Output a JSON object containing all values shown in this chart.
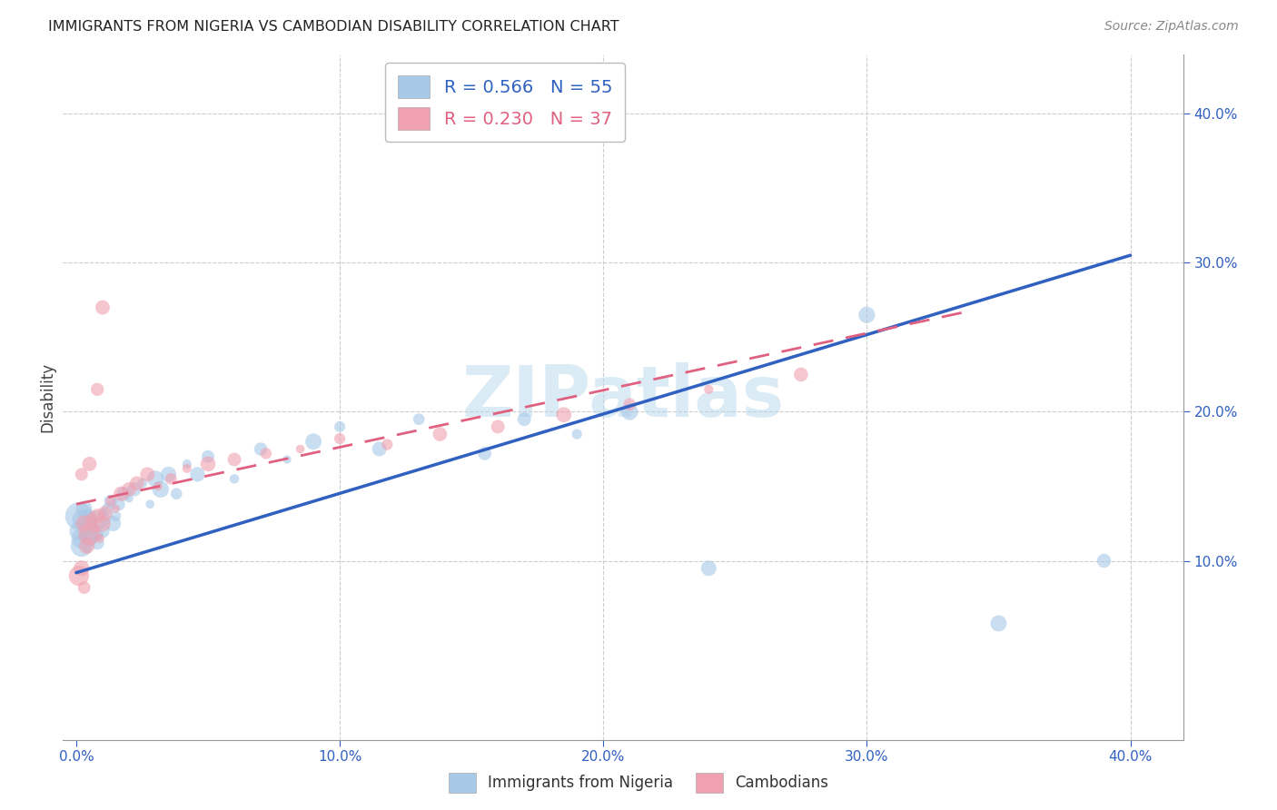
{
  "title": "IMMIGRANTS FROM NIGERIA VS CAMBODIAN DISABILITY CORRELATION CHART",
  "source": "Source: ZipAtlas.com",
  "ylabel": "Disability",
  "xlim": [
    -0.005,
    0.42
  ],
  "ylim": [
    -0.02,
    0.44
  ],
  "xticks": [
    0.0,
    0.1,
    0.2,
    0.3,
    0.4
  ],
  "yticks_right": [
    0.1,
    0.2,
    0.3,
    0.4
  ],
  "ytick_labels_right": [
    "10.0%",
    "20.0%",
    "30.0%",
    "40.0%"
  ],
  "xtick_labels": [
    "0.0%",
    "10.0%",
    "20.0%",
    "30.0%",
    "40.0%"
  ],
  "blue_R": 0.566,
  "blue_N": 55,
  "pink_R": 0.23,
  "pink_N": 37,
  "blue_color": "#a8c8e8",
  "pink_color": "#f0a0b0",
  "blue_line_color": "#3060c0",
  "pink_line_color": "#e06080",
  "watermark": "ZIPatlas",
  "blue_line_x0": 0.0,
  "blue_line_y0": 0.092,
  "blue_line_x1": 0.4,
  "blue_line_y1": 0.305,
  "pink_line_x0": 0.0,
  "pink_line_y0": 0.138,
  "pink_line_x1": 0.34,
  "pink_line_y1": 0.268,
  "blue_scatter_x": [
    0.001,
    0.001,
    0.002,
    0.002,
    0.002,
    0.003,
    0.003,
    0.003,
    0.004,
    0.004,
    0.004,
    0.005,
    0.005,
    0.006,
    0.006,
    0.007,
    0.007,
    0.008,
    0.008,
    0.009,
    0.01,
    0.01,
    0.011,
    0.012,
    0.013,
    0.014,
    0.015,
    0.016,
    0.018,
    0.02,
    0.022,
    0.025,
    0.028,
    0.03,
    0.032,
    0.035,
    0.038,
    0.042,
    0.046,
    0.05,
    0.06,
    0.07,
    0.08,
    0.09,
    0.1,
    0.115,
    0.13,
    0.155,
    0.17,
    0.19,
    0.21,
    0.24,
    0.3,
    0.35,
    0.39
  ],
  "blue_scatter_y": [
    0.13,
    0.12,
    0.115,
    0.128,
    0.11,
    0.118,
    0.125,
    0.135,
    0.122,
    0.13,
    0.108,
    0.125,
    0.115,
    0.12,
    0.128,
    0.116,
    0.13,
    0.112,
    0.118,
    0.125,
    0.12,
    0.132,
    0.128,
    0.135,
    0.14,
    0.125,
    0.13,
    0.138,
    0.145,
    0.142,
    0.148,
    0.152,
    0.138,
    0.155,
    0.148,
    0.158,
    0.145,
    0.165,
    0.158,
    0.17,
    0.155,
    0.175,
    0.168,
    0.18,
    0.19,
    0.175,
    0.195,
    0.172,
    0.195,
    0.185,
    0.2,
    0.095,
    0.265,
    0.058,
    0.1
  ],
  "pink_scatter_x": [
    0.001,
    0.002,
    0.003,
    0.004,
    0.005,
    0.006,
    0.007,
    0.008,
    0.009,
    0.01,
    0.011,
    0.013,
    0.015,
    0.017,
    0.02,
    0.023,
    0.027,
    0.031,
    0.036,
    0.042,
    0.05,
    0.06,
    0.072,
    0.085,
    0.1,
    0.118,
    0.138,
    0.16,
    0.185,
    0.21,
    0.24,
    0.275,
    0.01,
    0.008,
    0.005,
    0.003,
    0.002
  ],
  "pink_scatter_y": [
    0.09,
    0.095,
    0.125,
    0.11,
    0.118,
    0.128,
    0.122,
    0.13,
    0.115,
    0.125,
    0.132,
    0.14,
    0.135,
    0.145,
    0.148,
    0.152,
    0.158,
    0.15,
    0.155,
    0.162,
    0.165,
    0.168,
    0.172,
    0.175,
    0.182,
    0.178,
    0.185,
    0.19,
    0.198,
    0.205,
    0.215,
    0.225,
    0.27,
    0.215,
    0.165,
    0.082,
    0.158
  ]
}
